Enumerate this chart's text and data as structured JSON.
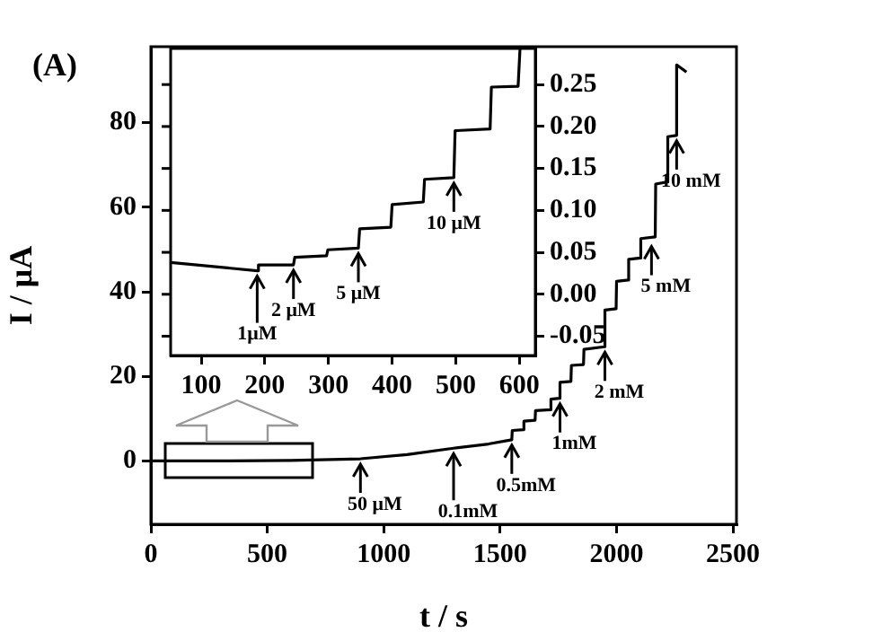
{
  "chart_data": [
    {
      "type": "line",
      "title": "(A)",
      "xlabel": "t / s",
      "ylabel": "I / μA",
      "xlim": [
        0,
        2515
      ],
      "xticks": [
        0,
        500,
        1000,
        1500,
        2000,
        2500
      ],
      "ylim": [
        -15,
        98
      ],
      "yticks": [
        0,
        20,
        40,
        60,
        80
      ],
      "grid": false,
      "marker": "none",
      "line_style": "solid",
      "x": [
        8,
        300,
        600,
        900,
        1100,
        1300,
        1450,
        1550,
        1552,
        1600,
        1602,
        1650,
        1652,
        1716,
        1718,
        1755,
        1757,
        1804,
        1806,
        1858,
        1860,
        1948,
        1950,
        1998,
        2000,
        2050,
        2052,
        2102,
        2104,
        2166,
        2168,
        2218,
        2220,
        2256,
        2258,
        2300
      ],
      "series": [
        {
          "color": "#000000",
          "values": [
            0,
            0,
            0.1,
            0.5,
            1.5,
            3,
            4,
            5,
            7.2,
            7.4,
            9.4,
            9.6,
            11.9,
            12.1,
            14.6,
            14.8,
            18.6,
            18.8,
            22.6,
            22.8,
            26.4,
            27,
            35.7,
            36,
            42.5,
            42.8,
            47.7,
            48,
            52.6,
            53,
            65.5,
            66,
            76.7,
            77,
            93.7,
            92
          ]
        }
      ],
      "annotations": [
        {
          "text": "50 μM",
          "x": 900,
          "y": 0.5
        },
        {
          "text": "0.1mM",
          "x": 1300,
          "y": 3
        },
        {
          "text": "0.5mM",
          "x": 1550,
          "y": 5
        },
        {
          "text": "1mM",
          "x": 1757,
          "y": 14.8
        },
        {
          "text": "2 mM",
          "x": 1950,
          "y": 27
        },
        {
          "text": "5 mM",
          "x": 2150,
          "y": 52
        },
        {
          "text": "10 mM",
          "x": 2258,
          "y": 77
        }
      ]
    },
    {
      "type": "line",
      "xlim": [
        52,
        625
      ],
      "xticks": [
        100,
        200,
        300,
        400,
        500,
        600
      ],
      "ylim": [
        -0.073,
        0.293
      ],
      "yticks": [
        {
          "value": -0.05,
          "label": "-0.05"
        },
        {
          "value": 0,
          "label": "0.00"
        },
        0.05,
        {
          "value": 0.1,
          "label": "0.10"
        },
        0.15,
        {
          "value": 0.2,
          "label": "0.20"
        },
        0.25
      ],
      "grid": false,
      "marker": "none",
      "line_style": "solid",
      "x": [
        52,
        188,
        190,
        245,
        247,
        297,
        299,
        347,
        349,
        398,
        400,
        449,
        451,
        497,
        499,
        554,
        556,
        598,
        601
      ],
      "series": [
        {
          "color": "#000000",
          "axis": "y",
          "values": [
            0.038,
            0.028,
            0.035,
            0.035,
            0.044,
            0.046,
            0.053,
            0.055,
            0.078,
            0.08,
            0.107,
            0.11,
            0.137,
            0.139,
            0.195,
            0.197,
            0.247,
            0.248,
            0.293
          ]
        }
      ],
      "annotations": [
        {
          "text": "1μM",
          "x": 188,
          "y": 0.028
        },
        {
          "text": "2 μM",
          "x": 245,
          "y": 0.035
        },
        {
          "text": "5 μM",
          "x": 347,
          "y": 0.055
        },
        {
          "text": "10 μM",
          "x": 497,
          "y": 0.139
        }
      ]
    }
  ]
}
